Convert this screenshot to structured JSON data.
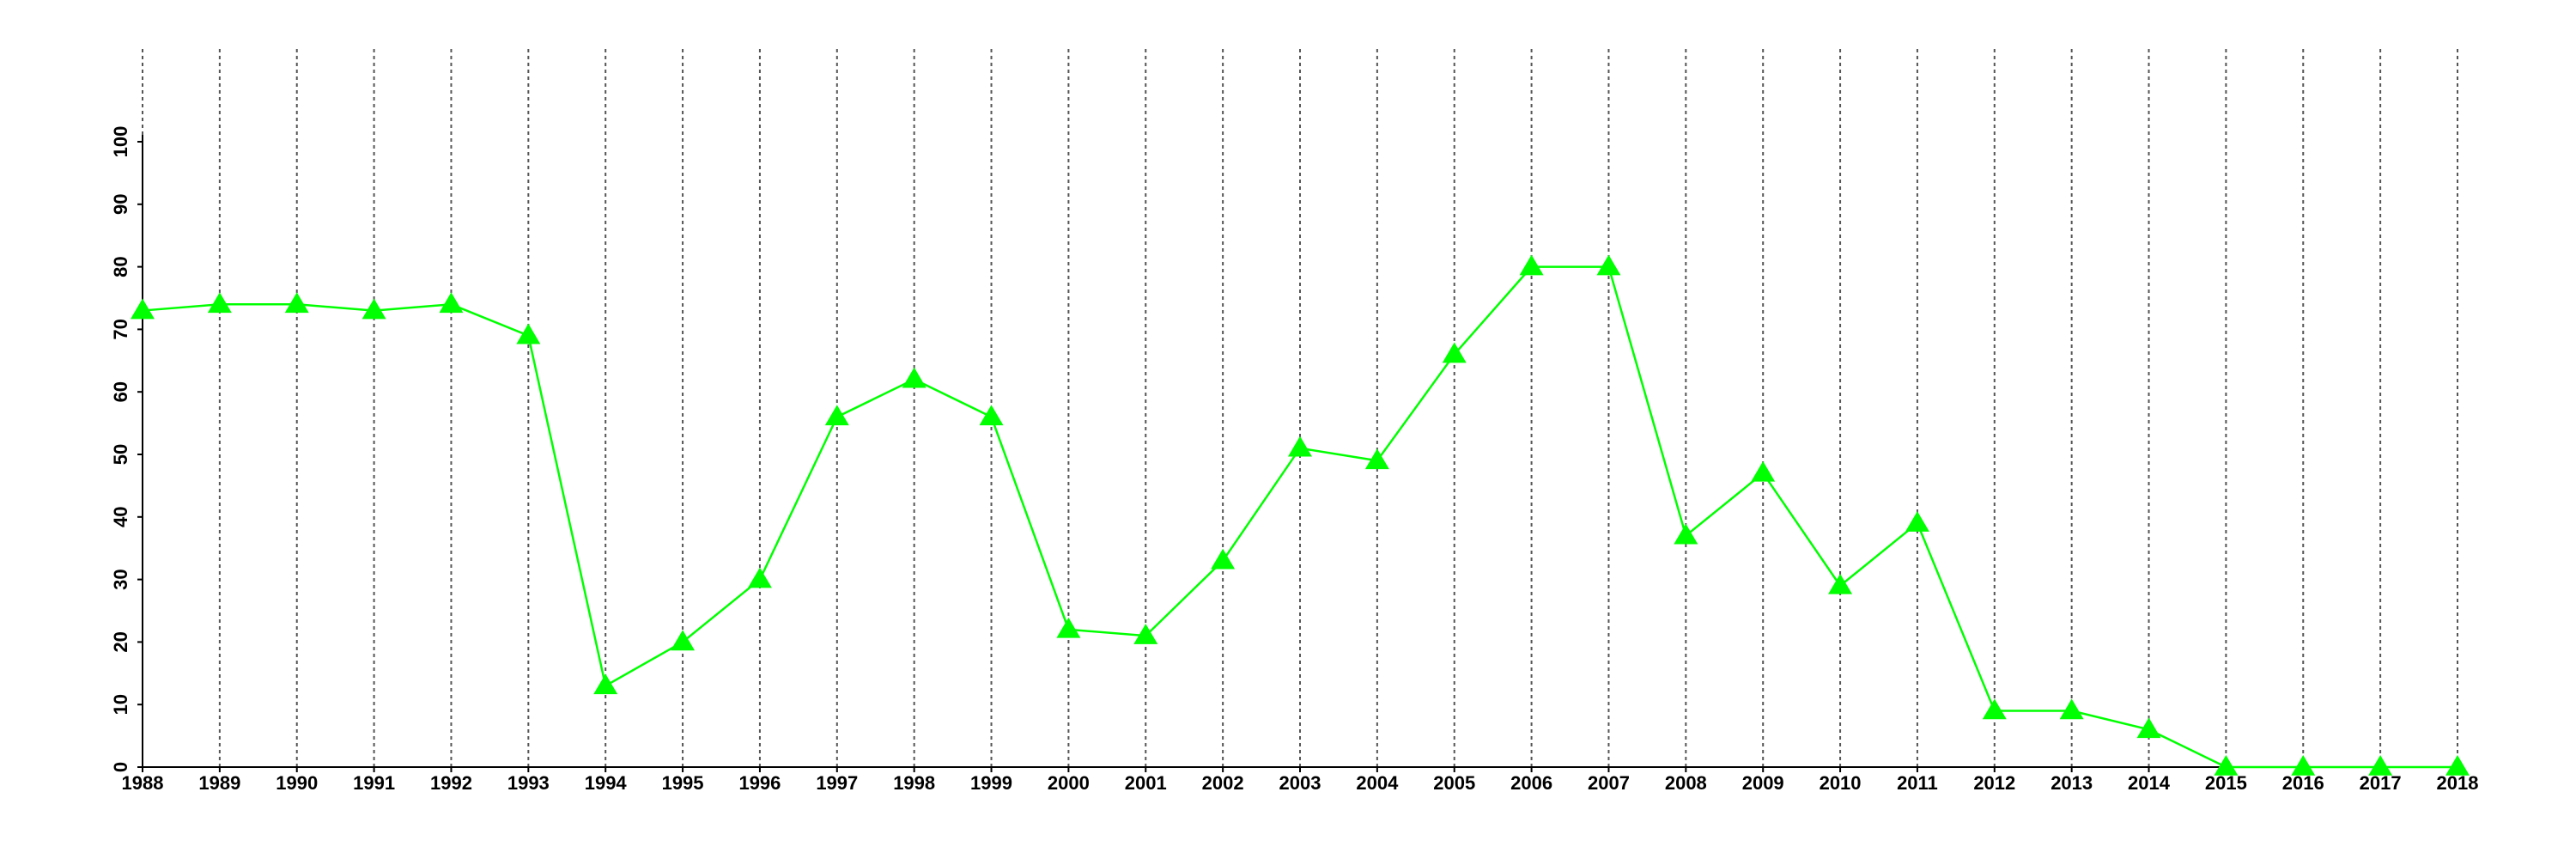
{
  "chart_data": {
    "type": "line",
    "x": [
      1988,
      1989,
      1990,
      1991,
      1992,
      1993,
      1994,
      1995,
      1996,
      1997,
      1998,
      1999,
      2000,
      2001,
      2002,
      2003,
      2004,
      2005,
      2006,
      2007,
      2008,
      2009,
      2010,
      2011,
      2012,
      2013,
      2014,
      2015,
      2016,
      2017,
      2018
    ],
    "series": [
      {
        "color": "#00ff00",
        "marker": "triangle",
        "values": [
          73,
          74,
          74,
          73,
          74,
          69,
          13,
          20,
          30,
          56,
          62,
          56,
          22,
          21,
          33,
          51,
          49,
          66,
          80,
          80,
          37,
          47,
          29,
          39,
          9,
          9,
          6,
          0,
          0,
          0,
          0
        ]
      }
    ],
    "xlim": [
      1988,
      2018
    ],
    "xticks": [
      1988,
      1989,
      1990,
      1991,
      1992,
      1993,
      1994,
      1995,
      1996,
      1997,
      1998,
      1999,
      2000,
      2001,
      2002,
      2003,
      2004,
      2005,
      2006,
      2007,
      2008,
      2009,
      2010,
      2011,
      2012,
      2013,
      2014,
      2015,
      2016,
      2017,
      2018
    ],
    "ylim": [
      0,
      100
    ],
    "yticks": [
      0,
      10,
      20,
      30,
      40,
      50,
      60,
      70,
      80,
      90,
      100
    ],
    "x_grid": true
  }
}
